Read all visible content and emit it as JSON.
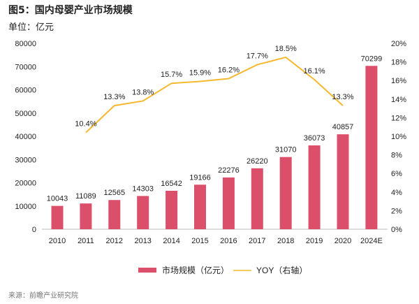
{
  "title": "图5：国内母婴产业市场规模",
  "unit": "单位：亿元",
  "source": "来源：前瞻产业研究院",
  "chart_data": {
    "type": "bar+line",
    "categories": [
      "2010",
      "2011",
      "2012",
      "2013",
      "2014",
      "2015",
      "2016",
      "2017",
      "2018",
      "2019",
      "2020",
      "2024E"
    ],
    "series": [
      {
        "name": "市场规模（亿元）",
        "type": "bar",
        "axis": "left",
        "color": "#dc4f6b",
        "values": [
          10043,
          11089,
          12565,
          14303,
          16542,
          19166,
          22276,
          26220,
          31070,
          36073,
          40857,
          70299
        ]
      },
      {
        "name": "YOY（右轴）",
        "type": "line",
        "axis": "right",
        "color": "#f5b82e",
        "values": [
          null,
          10.4,
          13.3,
          13.8,
          15.7,
          15.9,
          16.2,
          17.7,
          18.5,
          16.1,
          13.3,
          null
        ],
        "labels": [
          null,
          "10.4%",
          "13.3%",
          "13.8%",
          "15.7%",
          "15.9%",
          "16.2%",
          "17.7%",
          "18.5%",
          "16.1%",
          "13.3%",
          null
        ]
      }
    ],
    "ylim": [
      0,
      80000
    ],
    "yticks": [
      "0",
      "10000",
      "20000",
      "30000",
      "40000",
      "50000",
      "60000",
      "70000",
      "80000"
    ],
    "y2lim": [
      0,
      20
    ],
    "y2ticks": [
      "0%",
      "2%",
      "4%",
      "6%",
      "8%",
      "10%",
      "12%",
      "14%",
      "16%",
      "18%",
      "20%"
    ],
    "grid": false,
    "legend": "bottom"
  }
}
